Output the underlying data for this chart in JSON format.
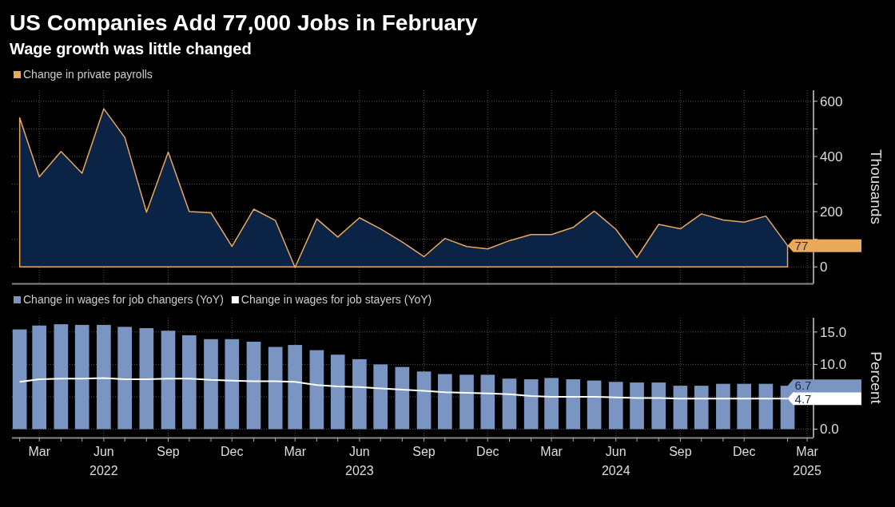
{
  "chart_data": [
    {
      "type": "area",
      "title": "US Companies Add 77,000 Jobs in February",
      "subtitle": "Wage growth was little changed",
      "ylabel": "Thousands",
      "x": [
        "2022-02",
        "2022-03",
        "2022-04",
        "2022-05",
        "2022-06",
        "2022-07",
        "2022-08",
        "2022-09",
        "2022-10",
        "2022-11",
        "2022-12",
        "2023-01",
        "2023-02",
        "2023-03",
        "2023-04",
        "2023-05",
        "2023-06",
        "2023-07",
        "2023-08",
        "2023-09",
        "2023-10",
        "2023-11",
        "2023-12",
        "2024-01",
        "2024-02",
        "2024-03",
        "2024-04",
        "2024-05",
        "2024-06",
        "2024-07",
        "2024-08",
        "2024-09",
        "2024-10",
        "2024-11",
        "2024-12",
        "2025-01",
        "2025-02"
      ],
      "series": [
        {
          "name": "Change in private payrolls",
          "color": "#e9a85a",
          "values": [
            540,
            326,
            418,
            339,
            573,
            469,
            198,
            416,
            200,
            196,
            74,
            209,
            168,
            -2,
            174,
            108,
            178,
            138,
            90,
            37,
            103,
            74,
            65,
            95,
            117,
            117,
            143,
            202,
            136,
            34,
            154,
            138,
            192,
            170,
            162,
            184,
            77
          ],
          "value_labels": [
            null,
            null,
            null,
            null,
            null,
            null,
            null,
            null,
            null,
            null,
            null,
            null,
            null,
            null,
            null,
            null,
            null,
            null,
            null,
            null,
            null,
            null,
            null,
            null,
            null,
            null,
            null,
            null,
            null,
            null,
            null,
            null,
            null,
            null,
            null,
            null,
            "77"
          ]
        }
      ],
      "xlim": [
        "2022-01-21",
        "2025-03-10"
      ],
      "xticks": [
        "2022-03",
        "2022-06",
        "2022-09",
        "2022-12",
        "2023-03",
        "2023-06",
        "2023-09",
        "2023-12",
        "2024-03",
        "2024-06",
        "2024-09",
        "2024-12",
        "2025-03"
      ],
      "ylim": [
        -60,
        640
      ],
      "yticks": [
        0,
        {
          "value": 100,
          "label": null
        },
        200,
        {
          "value": 300,
          "label": null
        },
        400,
        {
          "value": 500,
          "label": null
        },
        600
      ],
      "grid": true,
      "legend": "top left",
      "tick_labels": "y"
    },
    {
      "type": "bar",
      "ylabel": "Percent",
      "x": [
        "2022-02",
        "2022-03",
        "2022-04",
        "2022-05",
        "2022-06",
        "2022-07",
        "2022-08",
        "2022-09",
        "2022-10",
        "2022-11",
        "2022-12",
        "2023-01",
        "2023-02",
        "2023-03",
        "2023-04",
        "2023-05",
        "2023-06",
        "2023-07",
        "2023-08",
        "2023-09",
        "2023-10",
        "2023-11",
        "2023-12",
        "2024-01",
        "2024-02",
        "2024-03",
        "2024-04",
        "2024-05",
        "2024-06",
        "2024-07",
        "2024-08",
        "2024-09",
        "2024-10",
        "2024-11",
        "2024-12",
        "2025-01",
        "2025-02"
      ],
      "series": [
        {
          "name": "Change in wages for job changers (YoY)",
          "color": "#7a95c1",
          "values": [
            15.4,
            16.0,
            16.2,
            16.1,
            16.1,
            15.8,
            15.6,
            15.2,
            14.5,
            13.9,
            13.9,
            13.5,
            12.7,
            13.0,
            12.2,
            11.5,
            10.8,
            10.0,
            9.6,
            8.9,
            8.5,
            8.4,
            8.4,
            7.8,
            7.7,
            7.9,
            7.7,
            7.5,
            7.3,
            7.2,
            7.2,
            6.7,
            6.7,
            7.0,
            7.0,
            7.0,
            6.7
          ],
          "value_labels": [
            null,
            null,
            null,
            null,
            null,
            null,
            null,
            null,
            null,
            null,
            null,
            null,
            null,
            null,
            null,
            null,
            null,
            null,
            null,
            null,
            null,
            null,
            null,
            null,
            null,
            null,
            null,
            null,
            null,
            null,
            null,
            null,
            null,
            null,
            null,
            null,
            "6.7"
          ]
        },
        {
          "name": "Change in wages for job stayers (YoY)",
          "type": "line",
          "color": "#ffffff",
          "values": [
            7.3,
            7.7,
            7.8,
            7.8,
            7.9,
            7.7,
            7.7,
            7.8,
            7.8,
            7.6,
            7.5,
            7.4,
            7.4,
            7.3,
            6.8,
            6.6,
            6.5,
            6.3,
            6.1,
            5.9,
            5.7,
            5.6,
            5.5,
            5.4,
            5.1,
            5.0,
            5.0,
            5.0,
            4.9,
            4.8,
            4.8,
            4.7,
            4.7,
            4.7,
            4.7,
            4.7,
            4.7
          ],
          "value_labels": [
            null,
            null,
            null,
            null,
            null,
            null,
            null,
            null,
            null,
            null,
            null,
            null,
            null,
            null,
            null,
            null,
            null,
            null,
            null,
            null,
            null,
            null,
            null,
            null,
            null,
            null,
            null,
            null,
            null,
            null,
            null,
            null,
            null,
            null,
            null,
            null,
            "4.7"
          ]
        }
      ],
      "xlim": [
        "2022-01-21",
        "2025-03-10"
      ],
      "xticks": [
        {
          "value": "2022-02",
          "label": null
        },
        {
          "value": "2022-03",
          "label": "Mar"
        },
        {
          "value": "2022-04",
          "label": null
        },
        {
          "value": "2022-05",
          "label": null
        },
        {
          "value": "2022-06",
          "label": "Jun\n2022"
        },
        {
          "value": "2022-07",
          "label": null
        },
        {
          "value": "2022-08",
          "label": null
        },
        {
          "value": "2022-09",
          "label": "Sep"
        },
        {
          "value": "2022-10",
          "label": null
        },
        {
          "value": "2022-11",
          "label": null
        },
        {
          "value": "2022-12",
          "label": "Dec"
        },
        {
          "value": "2023-01",
          "label": null
        },
        {
          "value": "2023-02",
          "label": null
        },
        {
          "value": "2023-03",
          "label": "Mar"
        },
        {
          "value": "2023-04",
          "label": null
        },
        {
          "value": "2023-05",
          "label": null
        },
        {
          "value": "2023-06",
          "label": "Jun\n2023"
        },
        {
          "value": "2023-07",
          "label": null
        },
        {
          "value": "2023-08",
          "label": null
        },
        {
          "value": "2023-09",
          "label": "Sep"
        },
        {
          "value": "2023-10",
          "label": null
        },
        {
          "value": "2023-11",
          "label": null
        },
        {
          "value": "2023-12",
          "label": "Dec"
        },
        {
          "value": "2024-01",
          "label": null
        },
        {
          "value": "2024-02",
          "label": null
        },
        {
          "value": "2024-03",
          "label": "Mar"
        },
        {
          "value": "2024-04",
          "label": null
        },
        {
          "value": "2024-05",
          "label": null
        },
        {
          "value": "2024-06",
          "label": "Jun\n2024"
        },
        {
          "value": "2024-07",
          "label": null
        },
        {
          "value": "2024-08",
          "label": null
        },
        {
          "value": "2024-09",
          "label": "Sep"
        },
        {
          "value": "2024-10",
          "label": null
        },
        {
          "value": "2024-11",
          "label": null
        },
        {
          "value": "2024-12",
          "label": "Dec"
        },
        {
          "value": "2025-02",
          "label": null
        },
        {
          "value": "2025-03",
          "label": "Mar\n2025"
        }
      ],
      "ylim": [
        -1.3,
        17.2
      ],
      "yticks": [
        {
          "value": 0,
          "label": "0.0"
        },
        {
          "value": 5,
          "label": null
        },
        {
          "value": 10,
          "label": "10.0"
        },
        {
          "value": 15,
          "label": "15.0"
        }
      ],
      "grid": true,
      "legend": "top left"
    }
  ]
}
